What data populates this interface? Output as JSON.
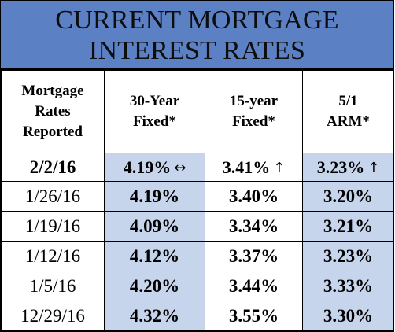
{
  "title": {
    "line1": "CURRENT MORTGAGE",
    "line2": "INTEREST RATES"
  },
  "headers": [
    {
      "lines": [
        "Mortgage",
        "Rates",
        "Reported"
      ]
    },
    {
      "lines": [
        "30-Year",
        "Fixed*"
      ]
    },
    {
      "lines": [
        "15-year",
        "Fixed*"
      ]
    },
    {
      "lines": [
        "5/1",
        "ARM*"
      ]
    }
  ],
  "rows": [
    {
      "date": "2/2/16",
      "r30": "4.19%",
      "r15": "3.41%",
      "arm": "3.23%",
      "r30_icon": "left-right-arrow-icon",
      "r15_icon": "up-arrow-icon",
      "arm_icon": "up-arrow-icon"
    },
    {
      "date": "1/26/16",
      "r30": "4.19%",
      "r15": "3.40%",
      "arm": "3.20%"
    },
    {
      "date": "1/19/16",
      "r30": "4.09%",
      "r15": "3.34%",
      "arm": "3.21%"
    },
    {
      "date": "1/12/16",
      "r30": "4.12%",
      "r15": "3.37%",
      "arm": "3.23%"
    },
    {
      "date": "1/5/16",
      "r30": "4.20%",
      "r15": "3.44%",
      "arm": "3.33%"
    },
    {
      "date": "12/29/16",
      "r30": "4.32%",
      "r15": "3.55%",
      "arm": "3.30%"
    }
  ],
  "colors": {
    "title_bg": "#5b80c4",
    "cell_bg": "#c6d4ec"
  }
}
